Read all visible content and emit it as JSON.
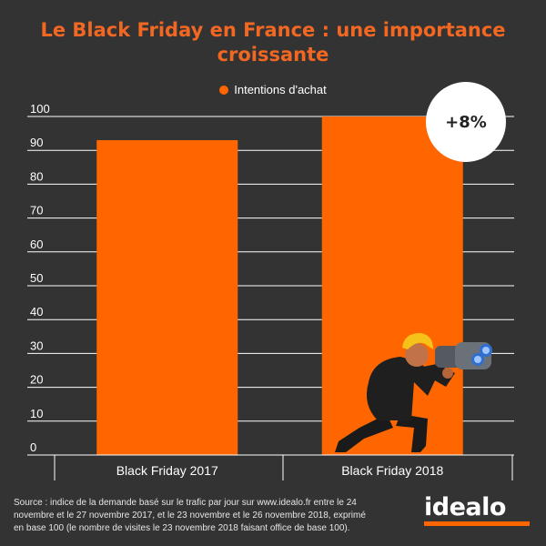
{
  "colors": {
    "bar": "#FF6600",
    "accent": "#F26722",
    "background": "#333333",
    "grid": "#ffffff"
  },
  "chart_data": {
    "type": "bar",
    "title": "Le Black Friday en France : une importance croissante",
    "title_lines": [
      "Le Black Friday en France : une importance",
      "croissante"
    ],
    "categories": [
      "Black Friday 2017",
      "Black Friday 2018"
    ],
    "series": [
      {
        "name": "Intentions d'achat",
        "values": [
          93,
          100
        ]
      }
    ],
    "ylim": [
      0,
      100
    ],
    "yticks": [
      0,
      10,
      20,
      30,
      40,
      50,
      60,
      70,
      80,
      90,
      100
    ],
    "grid": true,
    "legend": "top-center",
    "annotation": "+8%"
  },
  "source": {
    "lines": [
      "Source : indice de la demande basé sur le trafic par jour sur www.idealo.fr entre le 24",
      "novembre et le 27 novembre 2017, et le 23 novembre et le 26 novembre 2018, exprimé",
      "en base 100 (le nombre de visites le 23 novembre 2018 faisant office de base 100)."
    ]
  },
  "brand": {
    "logo_text": "idealo"
  },
  "illustration": {
    "icon": "person-with-binoculars-icon"
  }
}
